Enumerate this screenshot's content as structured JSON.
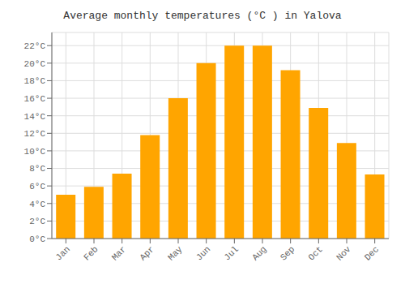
{
  "chart_data": {
    "type": "bar",
    "title": "Average monthly temperatures (°C ) in Yalova",
    "categories": [
      "Jan",
      "Feb",
      "Mar",
      "Apr",
      "May",
      "Jun",
      "Jul",
      "Aug",
      "Sep",
      "Oct",
      "Nov",
      "Dec"
    ],
    "values": [
      5.0,
      5.9,
      7.4,
      11.8,
      16.0,
      20.0,
      22.0,
      22.0,
      19.2,
      14.9,
      10.9,
      7.3
    ],
    "color": "#FFA500",
    "ylim": [
      0,
      23.5
    ],
    "yticks": [
      {
        "value": 0,
        "label": "0°C"
      },
      {
        "value": 2,
        "label": "2°C"
      },
      {
        "value": 4,
        "label": "4°C"
      },
      {
        "value": 6,
        "label": "6°C"
      },
      {
        "value": 8,
        "label": "8°C"
      },
      {
        "value": 10,
        "label": "10°C"
      },
      {
        "value": 12,
        "label": "12°C"
      },
      {
        "value": 14,
        "label": "14°C"
      },
      {
        "value": 16,
        "label": "16°C"
      },
      {
        "value": 18,
        "label": "18°C"
      },
      {
        "value": 20,
        "label": "20°C"
      },
      {
        "value": 22,
        "label": "22°C"
      }
    ],
    "grid": true
  }
}
